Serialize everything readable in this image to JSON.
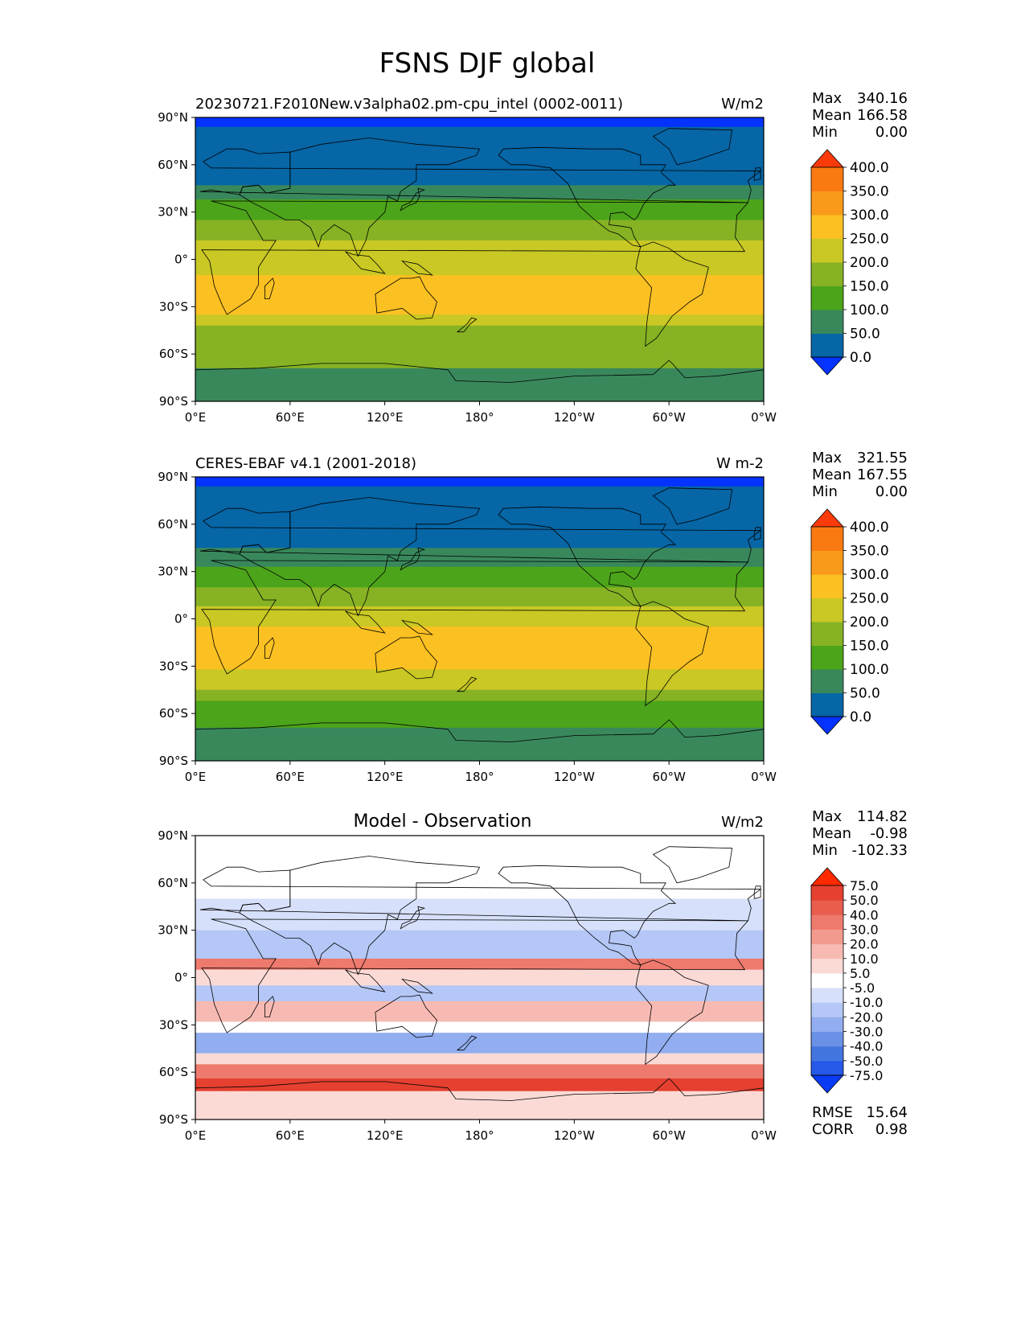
{
  "figure_title": "FSNS DJF global",
  "colors": {
    "abs_levels": [
      "#0432ff",
      "#0666a6",
      "#39885c",
      "#4ca41a",
      "#86b224",
      "#c9c824",
      "#fbc022",
      "#f99a1a",
      "#fa7a12",
      "#fb3a0a"
    ],
    "diff_levels": [
      "#0a3cf6",
      "#2659e8",
      "#4375df",
      "#6b91e6",
      "#92aef0",
      "#b4c7f6",
      "#d6e0fa",
      "#ffffff",
      "#fbdad6",
      "#f7bab2",
      "#f39a8f",
      "#ee7a6d",
      "#e85d4e",
      "#e54030",
      "#ff2a00"
    ],
    "coast": "#000000"
  },
  "chart_data": [
    {
      "type": "heatmap",
      "panel": "model",
      "title_left": "20230721.F2010New.v3alpha02.pm-cpu_intel (0002-0011)",
      "title_center": "",
      "units": "W/m2",
      "stats": {
        "max_label": "Max",
        "max": "340.16",
        "mean_label": "Mean",
        "mean": "166.58",
        "min_label": "Min",
        "min": "0.00"
      },
      "colorbar_ticks": [
        "400.0",
        "350.0",
        "300.0",
        "250.0",
        "200.0",
        "150.0",
        "100.0",
        "50.0",
        "0.0"
      ],
      "xticks": [
        "0°E",
        "60°E",
        "120°E",
        "180°",
        "120°W",
        "60°W",
        "0°W"
      ],
      "yticks": [
        "90°N",
        "60°N",
        "30°N",
        "0°",
        "30°S",
        "60°S",
        "90°S"
      ],
      "xlim": [
        0,
        360
      ],
      "ylim": [
        -90,
        90
      ],
      "zonal_bands": [
        {
          "lat_from": 90,
          "lat_to": 84,
          "value": 0
        },
        {
          "lat_from": 84,
          "lat_to": 47,
          "value": 40
        },
        {
          "lat_from": 47,
          "lat_to": 38,
          "value": 90
        },
        {
          "lat_from": 38,
          "lat_to": 25,
          "value": 140
        },
        {
          "lat_from": 25,
          "lat_to": 12,
          "value": 190
        },
        {
          "lat_from": 12,
          "lat_to": 2,
          "value": 225
        },
        {
          "lat_from": 2,
          "lat_to": -10,
          "value": 215
        },
        {
          "lat_from": -10,
          "lat_to": -35,
          "value": 260
        },
        {
          "lat_from": -35,
          "lat_to": -42,
          "value": 230
        },
        {
          "lat_from": -42,
          "lat_to": -50,
          "value": 195
        },
        {
          "lat_from": -50,
          "lat_to": -69,
          "value": 170
        },
        {
          "lat_from": -69,
          "lat_to": -90,
          "value": 90
        }
      ]
    },
    {
      "type": "heatmap",
      "panel": "observation",
      "title_left": "CERES-EBAF v4.1 (2001-2018)",
      "title_center": "",
      "units": "W m-2",
      "stats": {
        "max_label": "Max",
        "max": "321.55",
        "mean_label": "Mean",
        "mean": "167.55",
        "min_label": "Min",
        "min": "0.00"
      },
      "colorbar_ticks": [
        "400.0",
        "350.0",
        "300.0",
        "250.0",
        "200.0",
        "150.0",
        "100.0",
        "50.0",
        "0.0"
      ],
      "xticks": [
        "0°E",
        "60°E",
        "120°E",
        "180°",
        "120°W",
        "60°W",
        "0°W"
      ],
      "yticks": [
        "90°N",
        "60°N",
        "30°N",
        "0°",
        "30°S",
        "60°S",
        "90°S"
      ],
      "xlim": [
        0,
        360
      ],
      "ylim": [
        -90,
        90
      ],
      "zonal_bands": [
        {
          "lat_from": 90,
          "lat_to": 84,
          "value": 0
        },
        {
          "lat_from": 84,
          "lat_to": 45,
          "value": 40
        },
        {
          "lat_from": 45,
          "lat_to": 33,
          "value": 90
        },
        {
          "lat_from": 33,
          "lat_to": 20,
          "value": 140
        },
        {
          "lat_from": 20,
          "lat_to": 8,
          "value": 190
        },
        {
          "lat_from": 8,
          "lat_to": -5,
          "value": 215
        },
        {
          "lat_from": -5,
          "lat_to": -32,
          "value": 260
        },
        {
          "lat_from": -32,
          "lat_to": -45,
          "value": 220
        },
        {
          "lat_from": -45,
          "lat_to": -52,
          "value": 185
        },
        {
          "lat_from": -52,
          "lat_to": -69,
          "value": 140
        },
        {
          "lat_from": -69,
          "lat_to": -90,
          "value": 90
        }
      ]
    },
    {
      "type": "heatmap",
      "panel": "difference",
      "title_left": "",
      "title_center": "Model - Observation",
      "units": "W/m2",
      "stats": {
        "max_label": "Max",
        "max": "114.82",
        "mean_label": "Mean",
        "mean": "-0.98",
        "min_label": "Min",
        "min": "-102.33"
      },
      "colorbar_ticks": [
        "75.0",
        "50.0",
        "40.0",
        "30.0",
        "20.0",
        "10.0",
        "5.0",
        "-5.0",
        "-10.0",
        "-20.0",
        "-30.0",
        "-40.0",
        "-50.0",
        "-75.0"
      ],
      "extra_stats": {
        "rmse_label": "RMSE",
        "rmse": "15.64",
        "corr_label": "CORR",
        "corr": "0.98"
      },
      "xticks": [
        "0°E",
        "60°E",
        "120°E",
        "180°",
        "120°W",
        "60°W",
        "0°W"
      ],
      "yticks": [
        "90°N",
        "60°N",
        "30°N",
        "0°",
        "30°S",
        "60°S",
        "90°S"
      ],
      "xlim": [
        0,
        360
      ],
      "ylim": [
        -90,
        90
      ],
      "zonal_bands": [
        {
          "lat_from": 90,
          "lat_to": 50,
          "value": 0
        },
        {
          "lat_from": 50,
          "lat_to": 30,
          "value": -8
        },
        {
          "lat_from": 30,
          "lat_to": 12,
          "value": -18
        },
        {
          "lat_from": 12,
          "lat_to": 5,
          "value": 35
        },
        {
          "lat_from": 5,
          "lat_to": -5,
          "value": 8
        },
        {
          "lat_from": -5,
          "lat_to": -15,
          "value": -12
        },
        {
          "lat_from": -15,
          "lat_to": -28,
          "value": 12
        },
        {
          "lat_from": -28,
          "lat_to": -35,
          "value": 4
        },
        {
          "lat_from": -35,
          "lat_to": -48,
          "value": -22
        },
        {
          "lat_from": -48,
          "lat_to": -55,
          "value": 8
        },
        {
          "lat_from": -55,
          "lat_to": -64,
          "value": 35
        },
        {
          "lat_from": -64,
          "lat_to": -72,
          "value": 60
        },
        {
          "lat_from": -72,
          "lat_to": -90,
          "value": 6
        }
      ]
    }
  ]
}
